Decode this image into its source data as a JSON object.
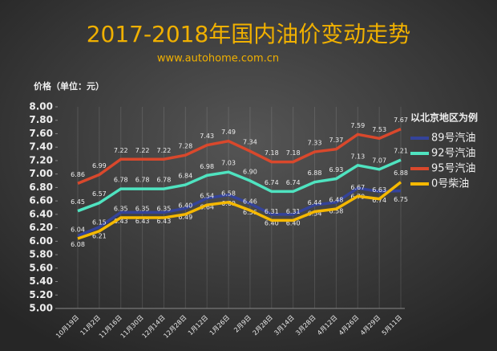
{
  "chart_data": {
    "type": "line",
    "title": "2017-2018年国内油价变动走势",
    "subtitle": "www.autohome.com.cn",
    "y_label": "价格（单位：元）",
    "legend_title": "以北京地区为例",
    "categories": [
      "10月19日",
      "11月2日",
      "11月16日",
      "11月30日",
      "12月14日",
      "12月28日",
      "1月12日",
      "1月26日",
      "2月9日",
      "2月28日",
      "3月14日",
      "3月28日",
      "4月12日",
      "4月26日",
      "4月29日",
      "5月11日"
    ],
    "series": [
      {
        "name": "89号汽油",
        "color": "#34439a",
        "values": [
          6.08,
          6.21,
          6.43,
          6.43,
          6.43,
          6.49,
          6.64,
          6.69,
          6.56,
          6.4,
          6.4,
          6.54,
          6.58,
          6.79,
          6.74,
          6.75
        ],
        "value_labels": [
          "6.08",
          "6.21",
          "6.43",
          "6.43",
          "6.43",
          "6.49",
          "6.64",
          "6.69",
          "6.56",
          "6.40",
          "6.40",
          "6.54",
          "6.58",
          "6.79",
          "6.74",
          "6.75"
        ]
      },
      {
        "name": "92号汽油",
        "color": "#4fe3c0",
        "values": [
          6.45,
          6.57,
          6.78,
          6.78,
          6.78,
          6.84,
          6.98,
          7.03,
          6.9,
          6.74,
          6.74,
          6.88,
          6.93,
          7.13,
          7.07,
          7.21
        ],
        "value_labels": [
          "6.45",
          "6.57",
          "6.78",
          "6.78",
          "6.78",
          "6.84",
          "6.98",
          "7.03",
          "6.90",
          "6.74",
          "6.74",
          "6.88",
          "6.93",
          "7.13",
          "7.07",
          "7.21"
        ]
      },
      {
        "name": "95号汽油",
        "color": "#d9482c",
        "values": [
          6.86,
          6.99,
          7.22,
          7.22,
          7.22,
          7.28,
          7.43,
          7.49,
          7.34,
          7.18,
          7.18,
          7.33,
          7.37,
          7.59,
          7.53,
          7.67
        ],
        "value_labels": [
          "6.86",
          "6.99",
          "7.22",
          "7.22",
          "7.22",
          "7.28",
          "7.43",
          "7.49",
          "7.34",
          "7.18",
          "7.18",
          "7.33",
          "7.37",
          "7.59",
          "7.53",
          "7.67"
        ]
      },
      {
        "name": "0号柴油",
        "color": "#f5b800",
        "values": [
          6.04,
          6.15,
          6.35,
          6.35,
          6.35,
          6.4,
          6.54,
          6.58,
          6.46,
          6.31,
          6.31,
          6.44,
          6.48,
          6.67,
          6.63,
          6.88
        ],
        "value_labels": [
          "6.04",
          "6.15",
          "6.35",
          "6.35",
          "6.35",
          "6.40",
          "6.54",
          "6.58",
          "6.46",
          "6.31",
          "6.31",
          "6.44",
          "6.48",
          "6.67",
          "6.63",
          "6.88"
        ]
      }
    ],
    "ylim": [
      5,
      8
    ],
    "yticks": [
      {
        "value": 5,
        "label": "5.00"
      },
      {
        "value": 5.2,
        "label": "5.20"
      },
      {
        "value": 5.4,
        "label": "5.40"
      },
      {
        "value": 5.6,
        "label": "5.60"
      },
      {
        "value": 5.8,
        "label": "5.80"
      },
      {
        "value": 6,
        "label": "6.00"
      },
      {
        "value": 6.2,
        "label": "6.20"
      },
      {
        "value": 6.4,
        "label": "6.40"
      },
      {
        "value": 6.6,
        "label": "6.60"
      },
      {
        "value": 6.8,
        "label": "6.80"
      },
      {
        "value": 7,
        "label": "7.00"
      },
      {
        "value": 7.2,
        "label": "7.20"
      },
      {
        "value": 7.4,
        "label": "7.40"
      },
      {
        "value": 7.6,
        "label": "7.60"
      },
      {
        "value": 7.8,
        "label": "7.80"
      },
      {
        "value": 8,
        "label": "8.00"
      }
    ]
  }
}
